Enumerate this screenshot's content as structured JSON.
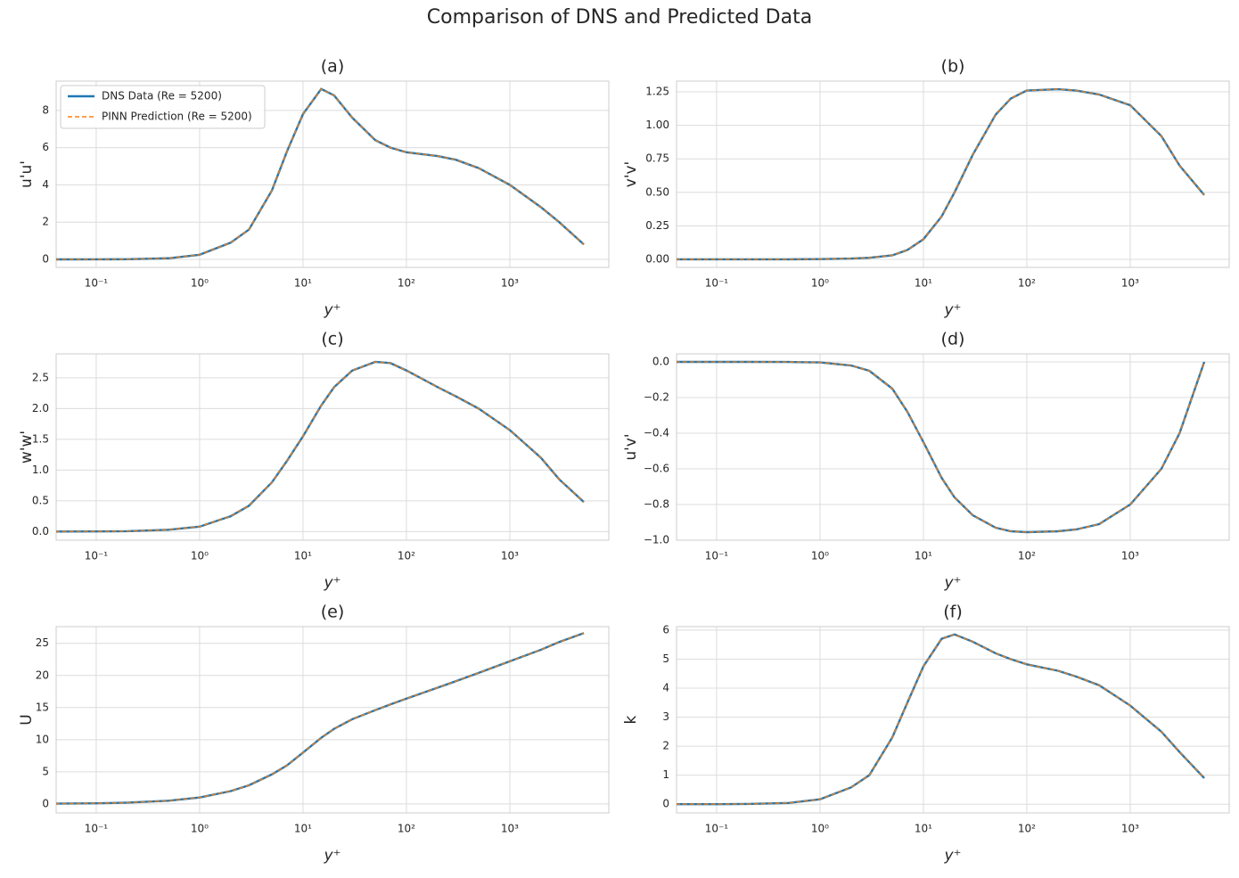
{
  "title": "Comparison of DNS and Predicted Data",
  "chart_data": [
    {
      "type": "line",
      "title": "(a)",
      "xlabel": "y⁺",
      "ylabel": "u'u'",
      "xscale": "log",
      "grid": true,
      "legend": "upper left",
      "x": [
        0.04,
        0.1,
        0.2,
        0.5,
        1,
        2,
        3,
        5,
        7,
        10,
        15,
        20,
        30,
        50,
        70,
        100,
        200,
        300,
        500,
        1000,
        2000,
        3000,
        5200
      ],
      "xlim": [
        0.041,
        9060
      ],
      "xticks": [
        {
          "value": 0.1,
          "label": "10⁻¹"
        },
        {
          "value": 1,
          "label": "10⁰"
        },
        {
          "value": 10,
          "label": "10¹"
        },
        {
          "value": 100,
          "label": "10²"
        },
        {
          "value": 1000,
          "label": "10³"
        }
      ],
      "ylim": [
        -0.43,
        9.57
      ],
      "yticks": [
        0,
        2,
        4,
        6,
        8
      ],
      "series": [
        {
          "name": "DNS Data (Re = 5200)",
          "color": "#1f77b4",
          "linestyle": "solid",
          "values": [
            0.0004,
            0.0025,
            0.01,
            0.06,
            0.25,
            0.9,
            1.6,
            3.7,
            5.8,
            7.8,
            9.15,
            8.8,
            7.6,
            6.4,
            6.0,
            5.75,
            5.55,
            5.35,
            4.9,
            4.0,
            2.8,
            2.0,
            0.8
          ]
        },
        {
          "name": "PINN Prediction (Re = 5200)",
          "color": "#ff7f0e",
          "linestyle": "dashed",
          "values": [
            0.0004,
            0.0025,
            0.01,
            0.06,
            0.25,
            0.9,
            1.6,
            3.7,
            5.8,
            7.8,
            9.15,
            8.8,
            7.6,
            6.4,
            6.0,
            5.75,
            5.55,
            5.35,
            4.9,
            4.0,
            2.8,
            2.0,
            0.8
          ]
        }
      ]
    },
    {
      "type": "line",
      "title": "(b)",
      "xlabel": "y⁺",
      "ylabel": "v'v'",
      "xscale": "log",
      "grid": true,
      "x": [
        0.04,
        0.1,
        0.2,
        0.5,
        1,
        2,
        3,
        5,
        7,
        10,
        15,
        20,
        30,
        50,
        70,
        100,
        200,
        300,
        500,
        1000,
        2000,
        3000,
        5200
      ],
      "xlim": [
        0.041,
        9060
      ],
      "xticks": [
        {
          "value": 0.1,
          "label": "10⁻¹"
        },
        {
          "value": 1,
          "label": "10⁰"
        },
        {
          "value": 10,
          "label": "10¹"
        },
        {
          "value": 100,
          "label": "10²"
        },
        {
          "value": 1000,
          "label": "10³"
        }
      ],
      "ylim": [
        -0.06,
        1.33
      ],
      "yticks": [
        {
          "value": 0,
          "label": "0.00"
        },
        0.25,
        {
          "value": 0.5,
          "label": "0.50"
        },
        0.75,
        {
          "value": 1,
          "label": "1.00"
        },
        1.25
      ],
      "series": [
        {
          "color": "#1f77b4",
          "linestyle": "solid",
          "values": [
            0,
            0,
            0,
            0.0005,
            0.002,
            0.006,
            0.012,
            0.03,
            0.07,
            0.15,
            0.32,
            0.5,
            0.78,
            1.08,
            1.2,
            1.26,
            1.27,
            1.26,
            1.23,
            1.15,
            0.92,
            0.7,
            0.48
          ]
        },
        {
          "color": "#ff7f0e",
          "linestyle": "dashed",
          "values": [
            0,
            0,
            0,
            0.0005,
            0.002,
            0.006,
            0.012,
            0.03,
            0.07,
            0.15,
            0.32,
            0.5,
            0.78,
            1.08,
            1.2,
            1.26,
            1.27,
            1.26,
            1.23,
            1.15,
            0.92,
            0.7,
            0.48
          ]
        }
      ]
    },
    {
      "type": "line",
      "title": "(c)",
      "xlabel": "y⁺",
      "ylabel": "w'w'",
      "xscale": "log",
      "grid": true,
      "x": [
        0.04,
        0.1,
        0.2,
        0.5,
        1,
        2,
        3,
        5,
        7,
        10,
        15,
        20,
        30,
        50,
        70,
        100,
        200,
        300,
        500,
        1000,
        2000,
        3000,
        5200
      ],
      "xlim": [
        0.041,
        9060
      ],
      "xticks": [
        {
          "value": 0.1,
          "label": "10⁻¹"
        },
        {
          "value": 1,
          "label": "10⁰"
        },
        {
          "value": 10,
          "label": "10¹"
        },
        {
          "value": 100,
          "label": "10²"
        },
        {
          "value": 1000,
          "label": "10³"
        }
      ],
      "ylim": [
        -0.14,
        2.89
      ],
      "yticks": [
        {
          "value": 0,
          "label": "0.0"
        },
        0.5,
        {
          "value": 1,
          "label": "1.0"
        },
        1.5,
        {
          "value": 2,
          "label": "2.0"
        },
        2.5
      ],
      "series": [
        {
          "color": "#1f77b4",
          "linestyle": "solid",
          "values": [
            0.0005,
            0.002,
            0.006,
            0.03,
            0.08,
            0.25,
            0.42,
            0.8,
            1.15,
            1.55,
            2.05,
            2.35,
            2.62,
            2.76,
            2.74,
            2.62,
            2.35,
            2.2,
            2.0,
            1.65,
            1.2,
            0.85,
            0.48
          ]
        },
        {
          "color": "#ff7f0e",
          "linestyle": "dashed",
          "values": [
            0.0005,
            0.002,
            0.006,
            0.03,
            0.08,
            0.25,
            0.42,
            0.8,
            1.15,
            1.55,
            2.05,
            2.35,
            2.62,
            2.76,
            2.74,
            2.62,
            2.35,
            2.2,
            2.0,
            1.65,
            1.2,
            0.85,
            0.48
          ]
        }
      ]
    },
    {
      "type": "line",
      "title": "(d)",
      "xlabel": "y⁺",
      "ylabel": "u'v'",
      "xscale": "log",
      "grid": true,
      "x": [
        0.04,
        0.1,
        0.2,
        0.5,
        1,
        2,
        3,
        5,
        7,
        10,
        15,
        20,
        30,
        50,
        70,
        100,
        200,
        300,
        500,
        1000,
        2000,
        3000,
        5200
      ],
      "xlim": [
        0.041,
        9060
      ],
      "xticks": [
        {
          "value": 0.1,
          "label": "10⁻¹"
        },
        {
          "value": 1,
          "label": "10⁰"
        },
        {
          "value": 10,
          "label": "10¹"
        },
        {
          "value": 100,
          "label": "10²"
        },
        {
          "value": 1000,
          "label": "10³"
        }
      ],
      "ylim": [
        -1.0,
        0.045
      ],
      "yticks": [
        {
          "value": 0,
          "label": "0.0"
        },
        {
          "value": -0.2,
          "label": "−0.2"
        },
        {
          "value": -0.4,
          "label": "−0.4"
        },
        {
          "value": -0.6,
          "label": "−0.6"
        },
        {
          "value": -0.8,
          "label": "−0.8"
        },
        {
          "value": -1.0,
          "label": "−1.0"
        }
      ],
      "series": [
        {
          "color": "#1f77b4",
          "linestyle": "solid",
          "values": [
            0,
            0,
            0,
            -0.0005,
            -0.003,
            -0.02,
            -0.05,
            -0.15,
            -0.28,
            -0.45,
            -0.65,
            -0.76,
            -0.86,
            -0.93,
            -0.95,
            -0.955,
            -0.95,
            -0.94,
            -0.91,
            -0.8,
            -0.6,
            -0.4,
            0
          ]
        },
        {
          "color": "#ff7f0e",
          "linestyle": "dashed",
          "values": [
            0,
            0,
            0,
            -0.0005,
            -0.003,
            -0.02,
            -0.05,
            -0.15,
            -0.28,
            -0.45,
            -0.65,
            -0.76,
            -0.86,
            -0.93,
            -0.95,
            -0.955,
            -0.95,
            -0.94,
            -0.91,
            -0.8,
            -0.6,
            -0.4,
            0
          ]
        }
      ]
    },
    {
      "type": "line",
      "title": "(e)",
      "xlabel": "y⁺",
      "ylabel": "U",
      "xscale": "log",
      "grid": true,
      "x": [
        0.04,
        0.1,
        0.2,
        0.5,
        1,
        2,
        3,
        5,
        7,
        10,
        15,
        20,
        30,
        50,
        70,
        100,
        200,
        300,
        500,
        1000,
        2000,
        3000,
        5200
      ],
      "xlim": [
        0.041,
        9060
      ],
      "xticks": [
        {
          "value": 0.1,
          "label": "10⁻¹"
        },
        {
          "value": 1,
          "label": "10⁰"
        },
        {
          "value": 10,
          "label": "10¹"
        },
        {
          "value": 100,
          "label": "10²"
        },
        {
          "value": 1000,
          "label": "10³"
        }
      ],
      "ylim": [
        -1.4,
        27.6
      ],
      "yticks": [
        0,
        5,
        10,
        15,
        20,
        25
      ],
      "series": [
        {
          "color": "#1f77b4",
          "linestyle": "solid",
          "values": [
            0.04,
            0.1,
            0.2,
            0.5,
            1.0,
            2.0,
            2.9,
            4.6,
            6.0,
            8.0,
            10.3,
            11.7,
            13.2,
            14.6,
            15.5,
            16.4,
            18.1,
            19.1,
            20.4,
            22.2,
            24.0,
            25.2,
            26.6
          ]
        },
        {
          "color": "#ff7f0e",
          "linestyle": "dashed",
          "values": [
            0.04,
            0.1,
            0.2,
            0.5,
            1.0,
            2.0,
            2.9,
            4.6,
            6.0,
            8.0,
            10.3,
            11.7,
            13.2,
            14.6,
            15.5,
            16.4,
            18.1,
            19.1,
            20.4,
            22.2,
            24.0,
            25.2,
            26.6
          ]
        }
      ]
    },
    {
      "type": "line",
      "title": "(f)",
      "xlabel": "y⁺",
      "ylabel": "k",
      "xscale": "log",
      "grid": true,
      "x": [
        0.04,
        0.1,
        0.2,
        0.5,
        1,
        2,
        3,
        5,
        7,
        10,
        15,
        20,
        30,
        50,
        70,
        100,
        200,
        300,
        500,
        1000,
        2000,
        3000,
        5200
      ],
      "xlim": [
        0.041,
        9060
      ],
      "xticks": [
        {
          "value": 0.1,
          "label": "10⁻¹"
        },
        {
          "value": 1,
          "label": "10⁰"
        },
        {
          "value": 10,
          "label": "10¹"
        },
        {
          "value": 100,
          "label": "10²"
        },
        {
          "value": 1000,
          "label": "10³"
        }
      ],
      "ylim": [
        -0.3,
        6.12
      ],
      "yticks": [
        0,
        1,
        2,
        3,
        4,
        5,
        6
      ],
      "series": [
        {
          "color": "#1f77b4",
          "linestyle": "solid",
          "values": [
            0,
            0.002,
            0.008,
            0.045,
            0.17,
            0.58,
            1.0,
            2.3,
            3.5,
            4.75,
            5.7,
            5.85,
            5.6,
            5.2,
            5.0,
            4.82,
            4.6,
            4.4,
            4.1,
            3.4,
            2.5,
            1.8,
            0.9
          ]
        },
        {
          "color": "#ff7f0e",
          "linestyle": "dashed",
          "values": [
            0,
            0.002,
            0.008,
            0.045,
            0.17,
            0.58,
            1.0,
            2.3,
            3.5,
            4.75,
            5.7,
            5.85,
            5.6,
            5.2,
            5.0,
            4.82,
            4.6,
            4.4,
            4.1,
            3.4,
            2.5,
            1.8,
            0.9
          ]
        }
      ]
    }
  ]
}
